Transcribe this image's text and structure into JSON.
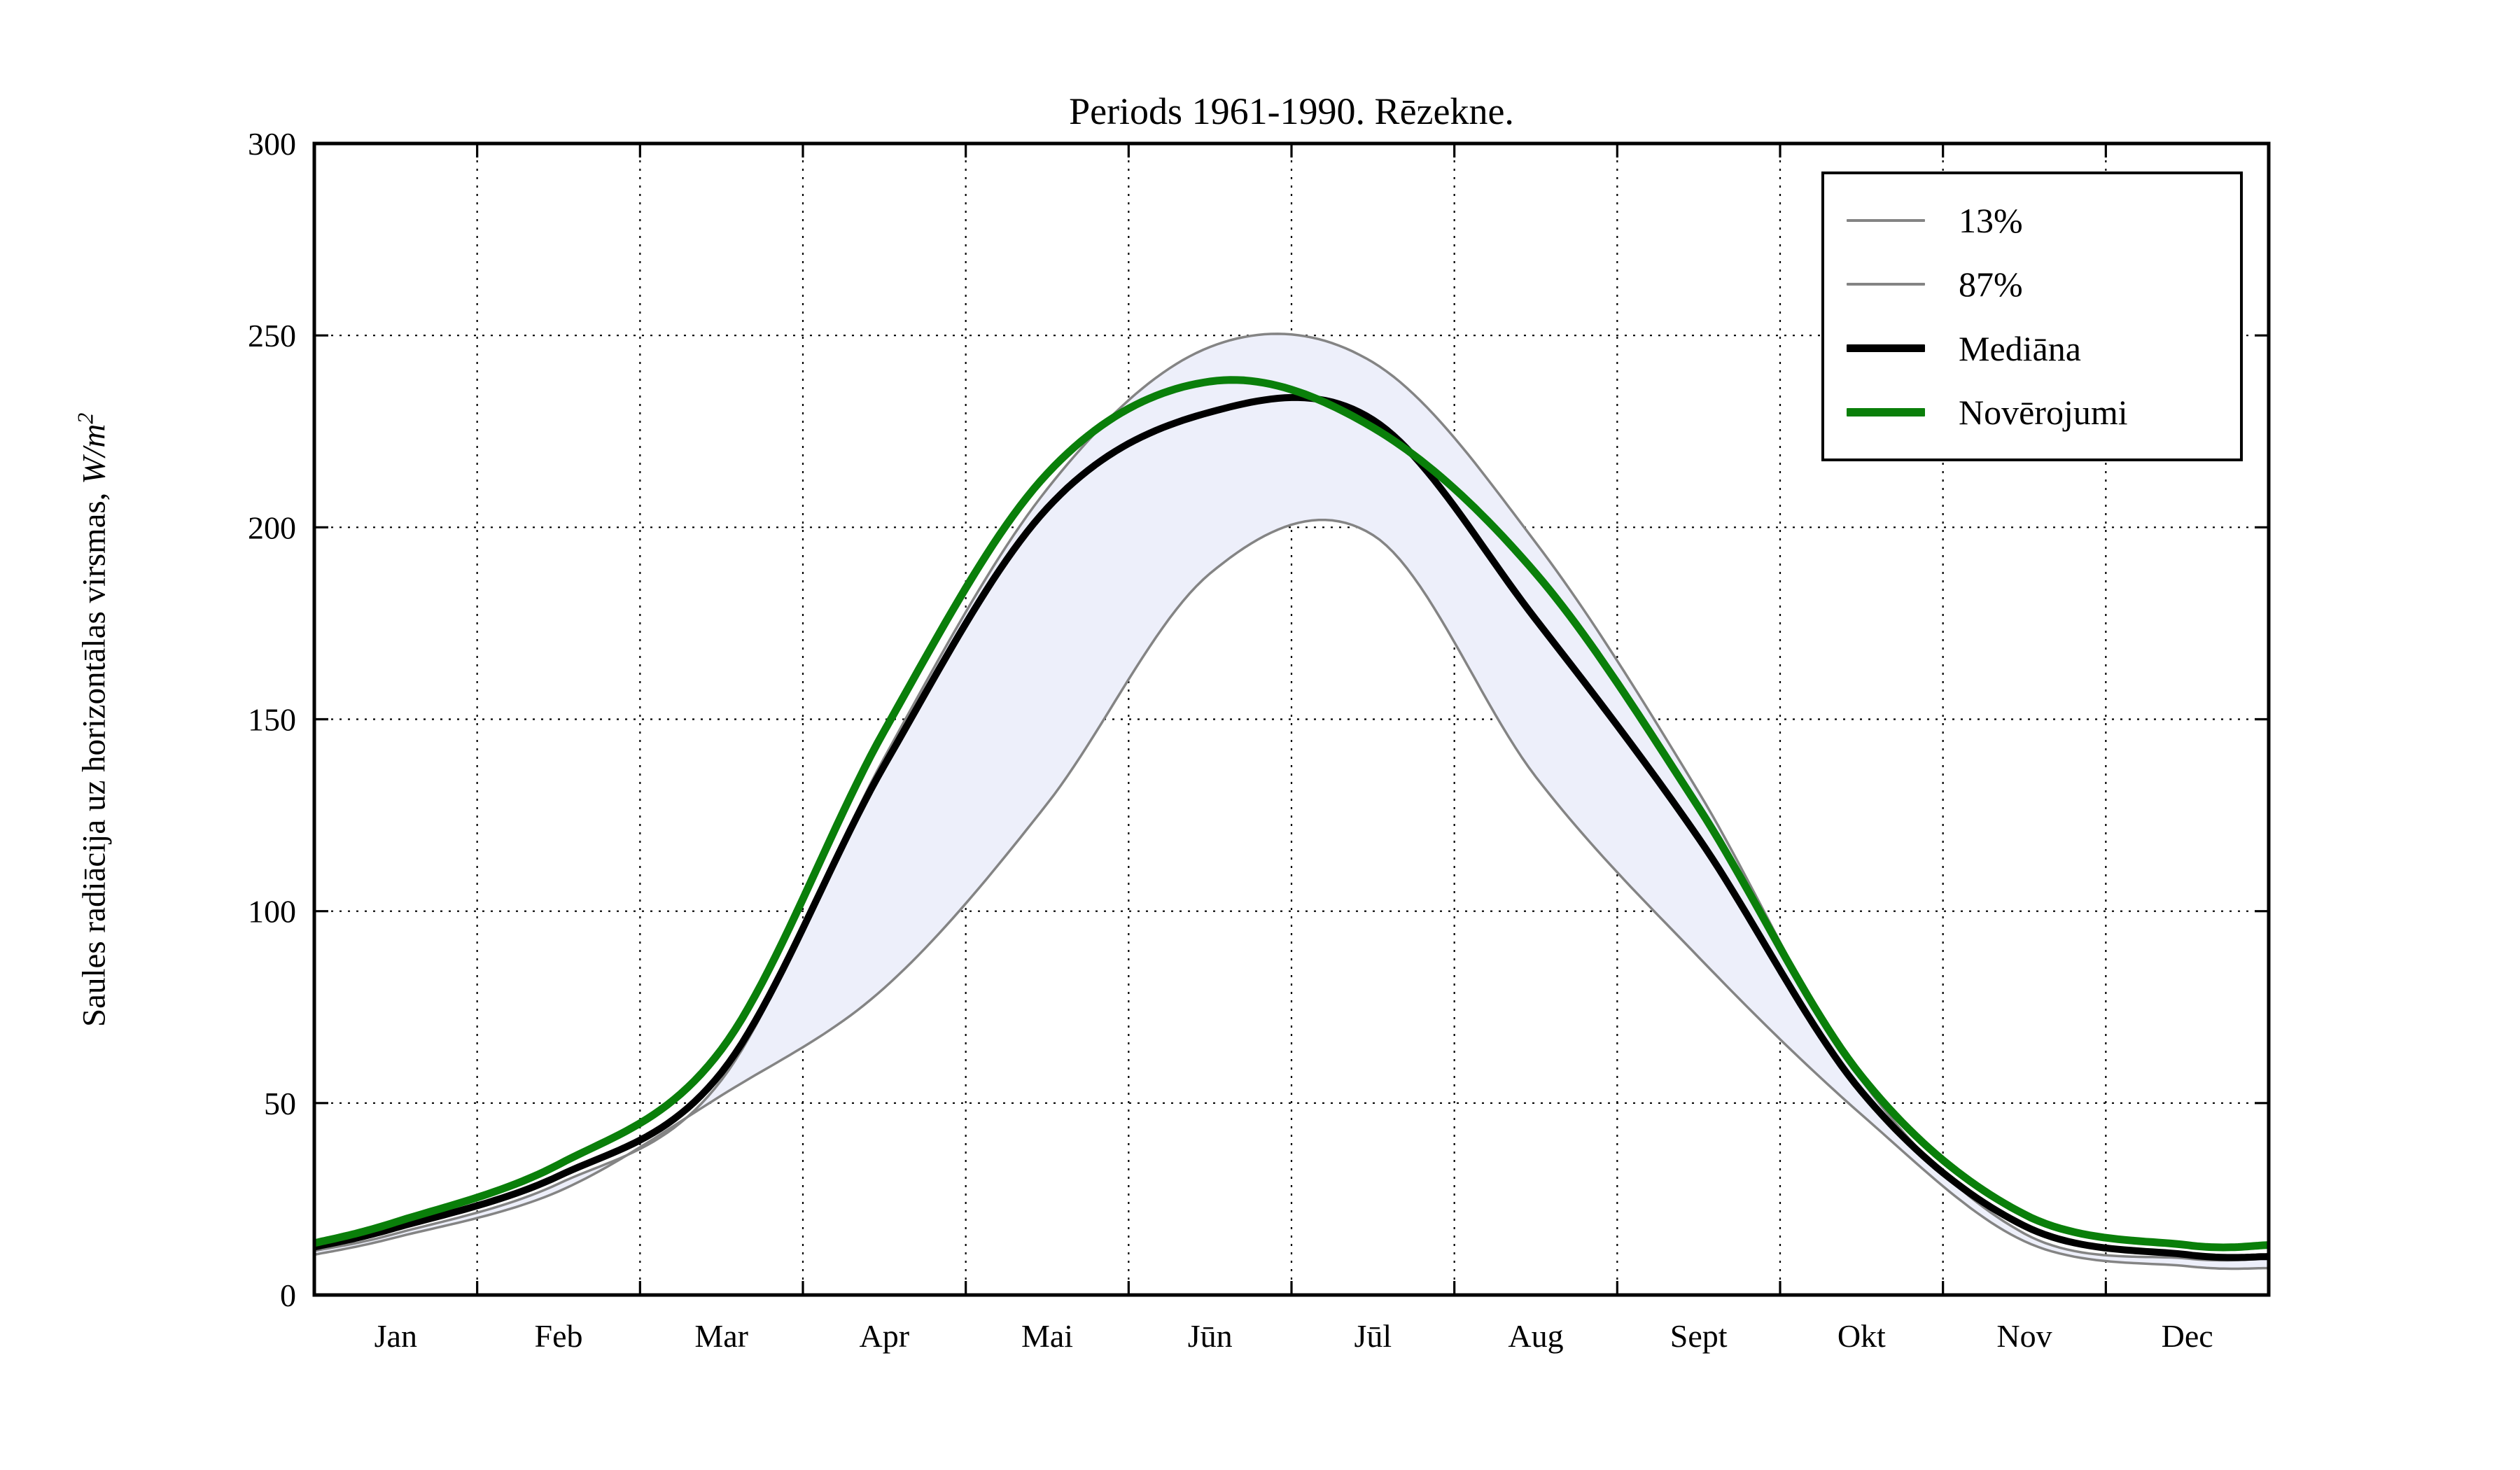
{
  "chart_data": {
    "type": "line",
    "title": "Periods 1961-1990. Rēzekne.",
    "ylabel": "Saules radiācija uz horizontālas virsmas, W/m2",
    "ylabel_prefix": "Saules radiācija uz horizontālas virsmas, ",
    "ylabel_math": "W/m",
    "ylabel_exponent": "2",
    "xlabel": "",
    "categories": [
      "Jan",
      "Feb",
      "Mar",
      "Apr",
      "Mai",
      "Jūn",
      "Jūl",
      "Aug",
      "Sept",
      "Okt",
      "Nov",
      "Dec"
    ],
    "y_ticks": [
      0,
      50,
      100,
      150,
      200,
      250,
      300
    ],
    "ylim": [
      0,
      300
    ],
    "xlim_months": [
      0,
      12
    ],
    "grid": "dotted",
    "legend_position": "upper right",
    "colors": {
      "percentile_line": "#848484",
      "median_line": "#000000",
      "observation_line": "#0a7f0a",
      "band_fill": "#edeffa",
      "grid_line": "#000000",
      "axes": "#000000"
    },
    "band": {
      "lower_series": "13%",
      "upper_series": "87%"
    },
    "series": [
      {
        "name": "13%",
        "color": "#848484",
        "line_width": 3.5,
        "edge_left": 10.5,
        "values": [
          15,
          27,
          52,
          80,
          128,
          188,
          198,
          135,
          88,
          47,
          14,
          7.5
        ],
        "edge_right": 7
      },
      {
        "name": "87%",
        "color": "#848484",
        "line_width": 3.5,
        "edge_left": 11.5,
        "values": [
          16,
          29,
          56,
          140,
          210,
          247,
          243,
          196,
          131,
          56,
          16,
          9.5
        ],
        "edge_right": 9.5
      },
      {
        "name": "Mediāna",
        "color": "#000000",
        "line_width": 10,
        "edge_left": 12.5,
        "values": [
          17.5,
          31,
          58,
          138,
          205,
          230,
          228,
          176,
          119,
          53,
          18,
          10.5
        ],
        "edge_right": 10
      },
      {
        "name": "Novērojumi",
        "color": "#0a7f0a",
        "line_width": 11,
        "edge_left": 13.5,
        "values": [
          19,
          34,
          64,
          147,
          214,
          238,
          226,
          188,
          127,
          57,
          21,
          13
        ],
        "edge_right": 13
      }
    ]
  }
}
